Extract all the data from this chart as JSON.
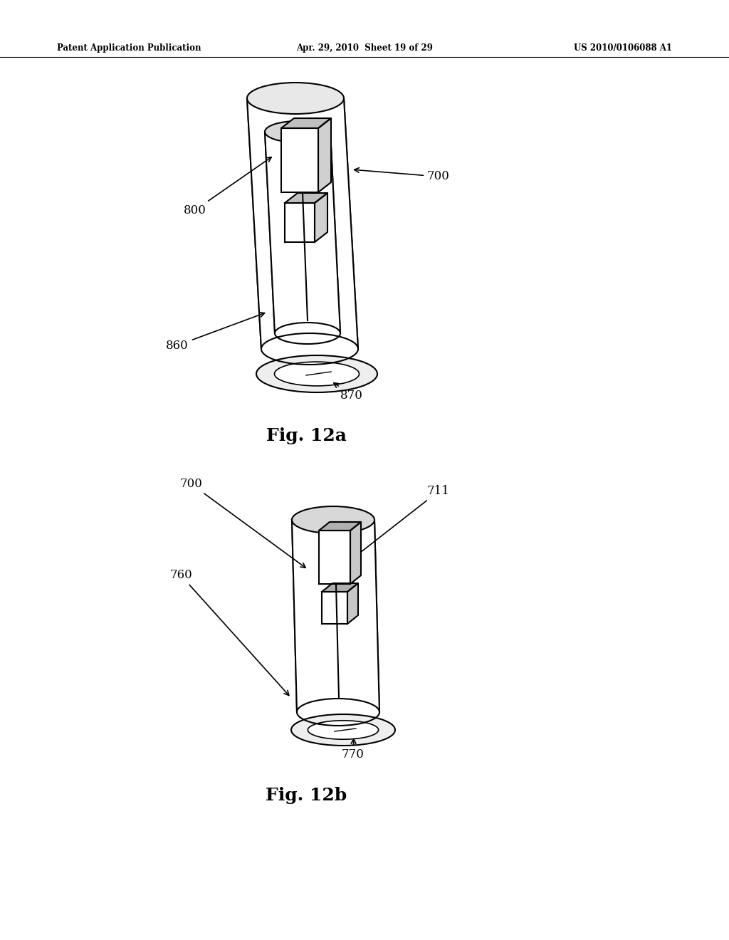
{
  "background_color": "#ffffff",
  "header_left": "Patent Application Publication",
  "header_mid": "Apr. 29, 2010  Sheet 19 of 29",
  "header_right": "US 2010/0106088 A1",
  "fig12a_title": "Fig. 12a",
  "fig12b_title": "Fig. 12b"
}
